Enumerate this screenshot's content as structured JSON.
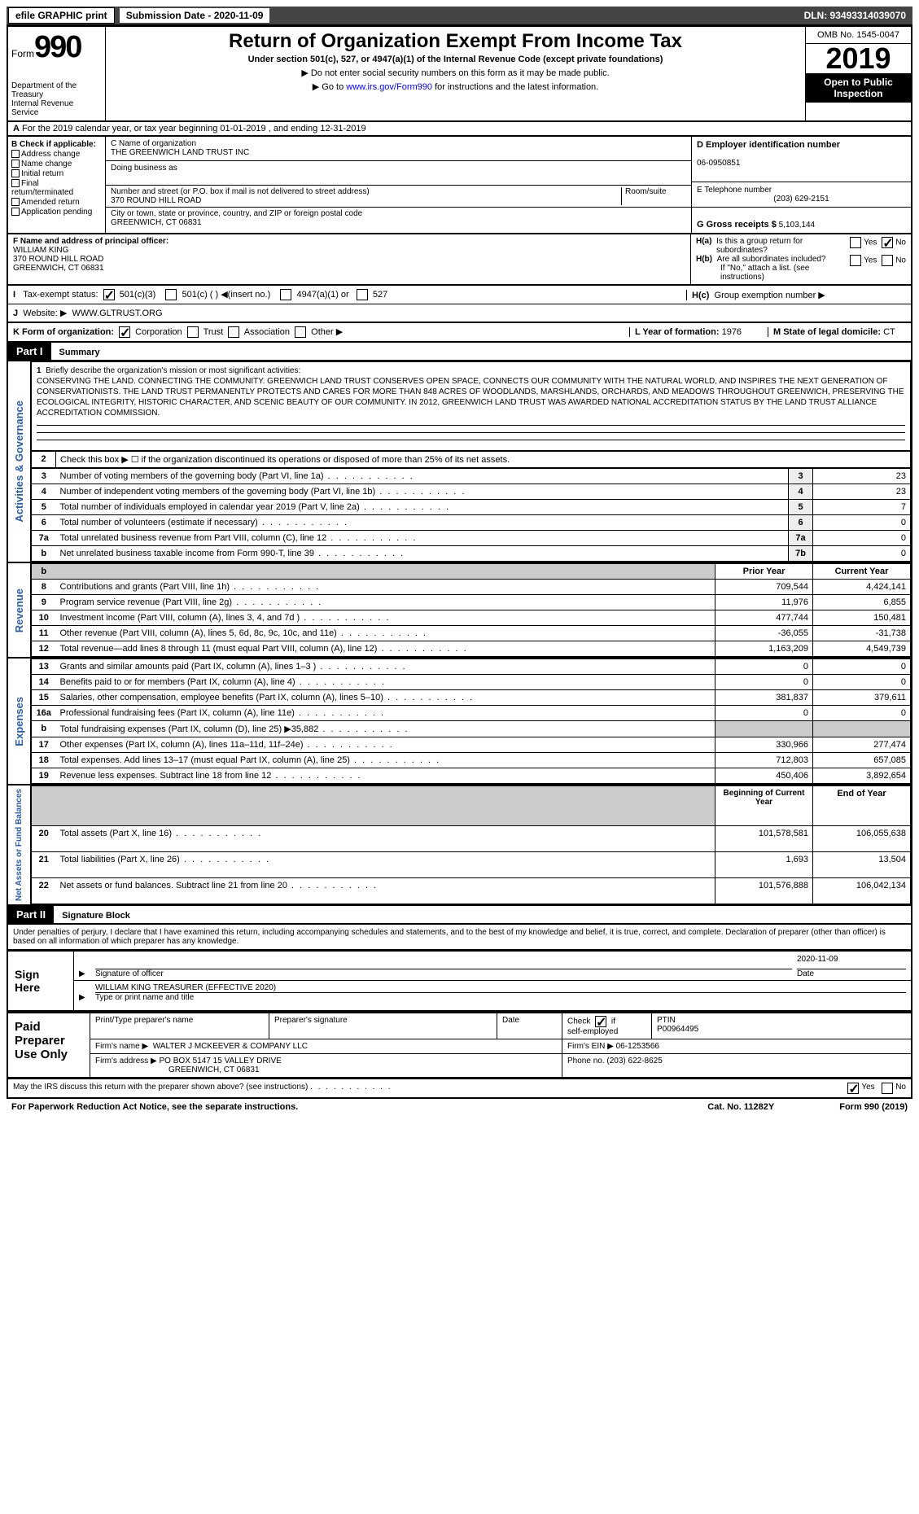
{
  "topbar": {
    "efile": "efile GRAPHIC print",
    "submission": "Submission Date - 2020-11-09",
    "dln": "DLN: 93493314039070"
  },
  "header": {
    "form": "Form",
    "n990": "990",
    "dept": "Department of the Treasury\nInternal Revenue Service",
    "title": "Return of Organization Exempt From Income Tax",
    "sub": "Under section 501(c), 527, or 4947(a)(1) of the Internal Revenue Code (except private foundations)",
    "arrow1": "▶ Do not enter social security numbers on this form as it may be made public.",
    "arrow2": "▶ Go to www.irs.gov/Form990 for instructions and the latest information.",
    "link": "www.irs.gov/Form990",
    "omb": "OMB No. 1545-0047",
    "year": "2019",
    "open": "Open to Public Inspection"
  },
  "A": {
    "line": "For the 2019 calendar year, or tax year beginning 01-01-2019   , and ending 12-31-2019"
  },
  "B": {
    "hdr": "B Check if applicable:",
    "opts": [
      "Address change",
      "Name change",
      "Initial return",
      "Final return/terminated",
      "Amended return",
      "Application pending"
    ]
  },
  "C": {
    "lbl": "C Name of organization",
    "name": "THE GREENWICH LAND TRUST INC",
    "dba": "Doing business as",
    "addrlbl": "Number and street (or P.O. box if mail is not delivered to street address)",
    "room": "Room/suite",
    "addr": "370 ROUND HILL ROAD",
    "citylbl": "City or town, state or province, country, and ZIP or foreign postal code",
    "city": "GREENWICH, CT  06831"
  },
  "D": {
    "lbl": "D Employer identification number",
    "ein": "06-0950851"
  },
  "E": {
    "lbl": "E Telephone number",
    "tel": "(203) 629-2151"
  },
  "G": {
    "lbl": "G Gross receipts $",
    "val": "5,103,144"
  },
  "F": {
    "lbl": "F  Name and address of principal officer:",
    "name": "WILLIAM KING",
    "addr": "370 ROUND HILL ROAD",
    "city": "GREENWICH, CT  06831"
  },
  "H": {
    "a": "Is this a group return for",
    "a2": "subordinates?",
    "b": "Are all subordinates included?",
    "bnote": "If \"No,\" attach a list. (see instructions)",
    "c": "Group exemption number ▶",
    "yes": "Yes",
    "no": "No"
  },
  "I": {
    "lbl": "Tax-exempt status:",
    "o1": "501(c)(3)",
    "o2": "501(c) (  ) ◀(insert no.)",
    "o3": "4947(a)(1) or",
    "o4": "527"
  },
  "J": {
    "lbl": "Website: ▶",
    "val": "WWW.GLTRUST.ORG"
  },
  "K": {
    "lbl": "K Form of organization:",
    "o1": "Corporation",
    "o2": "Trust",
    "o3": "Association",
    "o4": "Other ▶"
  },
  "L": {
    "lbl": "L Year of formation:",
    "val": "1976"
  },
  "M": {
    "lbl": "M State of legal domicile:",
    "val": "CT"
  },
  "part1": {
    "hdr": "Part I",
    "title": "Summary",
    "vlabels": [
      "Activities & Governance",
      "Revenue",
      "Expenses",
      "Net Assets or Fund Balances"
    ],
    "line1": "Briefly describe the organization's mission or most significant activities:",
    "mission": "CONSERVING THE LAND. CONNECTING THE COMMUNITY. GREENWICH LAND TRUST CONSERVES OPEN SPACE, CONNECTS OUR COMMUNITY WITH THE NATURAL WORLD, AND INSPIRES THE NEXT GENERATION OF CONSERVATIONISTS. THE LAND TRUST PERMANENTLY PROTECTS AND CARES FOR MORE THAN 848 ACRES OF WOODLANDS, MARSHLANDS, ORCHARDS, AND MEADOWS THROUGHOUT GREENWICH, PRESERVING THE ECOLOGICAL INTEGRITY, HISTORIC CHARACTER, AND SCENIC BEAUTY OF OUR COMMUNITY. IN 2012, GREENWICH LAND TRUST WAS AWARDED NATIONAL ACCREDITATION STATUS BY THE LAND TRUST ALLIANCE ACCREDITATION COMMISSION.",
    "line2": "Check this box ▶ ☐  if the organization discontinued its operations or disposed of more than 25% of its net assets.",
    "rows_gov": [
      [
        "3",
        "Number of voting members of the governing body (Part VI, line 1a)",
        "3",
        "23"
      ],
      [
        "4",
        "Number of independent voting members of the governing body (Part VI, line 1b)",
        "4",
        "23"
      ],
      [
        "5",
        "Total number of individuals employed in calendar year 2019 (Part V, line 2a)",
        "5",
        "7"
      ],
      [
        "6",
        "Total number of volunteers (estimate if necessary)",
        "6",
        "0"
      ],
      [
        "7a",
        "Total unrelated business revenue from Part VIII, column (C), line 12",
        "7a",
        "0"
      ],
      [
        "b",
        "Net unrelated business taxable income from Form 990-T, line 39",
        "7b",
        "0"
      ]
    ],
    "col_py": "Prior Year",
    "col_cy": "Current Year",
    "rows_rev": [
      [
        "8",
        "Contributions and grants (Part VIII, line 1h)",
        "709,544",
        "4,424,141"
      ],
      [
        "9",
        "Program service revenue (Part VIII, line 2g)",
        "11,976",
        "6,855"
      ],
      [
        "10",
        "Investment income (Part VIII, column (A), lines 3, 4, and 7d )",
        "477,744",
        "150,481"
      ],
      [
        "11",
        "Other revenue (Part VIII, column (A), lines 5, 6d, 8c, 9c, 10c, and 11e)",
        "-36,055",
        "-31,738"
      ],
      [
        "12",
        "Total revenue—add lines 8 through 11 (must equal Part VIII, column (A), line 12)",
        "1,163,209",
        "4,549,739"
      ]
    ],
    "rows_exp": [
      [
        "13",
        "Grants and similar amounts paid (Part IX, column (A), lines 1–3 )",
        "0",
        "0"
      ],
      [
        "14",
        "Benefits paid to or for members (Part IX, column (A), line 4)",
        "0",
        "0"
      ],
      [
        "15",
        "Salaries, other compensation, employee benefits (Part IX, column (A), lines 5–10)",
        "381,837",
        "379,611"
      ],
      [
        "16a",
        "Professional fundraising fees (Part IX, column (A), line 11e)",
        "0",
        "0"
      ],
      [
        "b",
        "Total fundraising expenses (Part IX, column (D), line 25) ▶35,882",
        "",
        ""
      ],
      [
        "17",
        "Other expenses (Part IX, column (A), lines 11a–11d, 11f–24e)",
        "330,966",
        "277,474"
      ],
      [
        "18",
        "Total expenses. Add lines 13–17 (must equal Part IX, column (A), line 25)",
        "712,803",
        "657,085"
      ],
      [
        "19",
        "Revenue less expenses. Subtract line 18 from line 12",
        "450,406",
        "3,892,654"
      ]
    ],
    "col_bcy": "Beginning of Current Year",
    "col_eoy": "End of Year",
    "rows_net": [
      [
        "20",
        "Total assets (Part X, line 16)",
        "101,578,581",
        "106,055,638"
      ],
      [
        "21",
        "Total liabilities (Part X, line 26)",
        "1,693",
        "13,504"
      ],
      [
        "22",
        "Net assets or fund balances. Subtract line 21 from line 20",
        "101,576,888",
        "106,042,134"
      ]
    ]
  },
  "part2": {
    "hdr": "Part II",
    "title": "Signature Block",
    "perjury": "Under penalties of perjury, I declare that I have examined this return, including accompanying schedules and statements, and to the best of my knowledge and belief, it is true, correct, and complete. Declaration of preparer (other than officer) is based on all information of which preparer has any knowledge.",
    "sign": "Sign Here",
    "sigoff": "Signature of officer",
    "date": "Date",
    "sigdate": "2020-11-09",
    "printed": "WILLIAM KING  TREASURER (EFFECTIVE 2020)",
    "printedlbl": "Type or print name and title",
    "paid": "Paid Preparer Use Only",
    "h1": "Print/Type preparer's name",
    "h2": "Preparer's signature",
    "h3": "Date",
    "h4": "Check ☑ if self-employed",
    "h5": "PTIN",
    "ptin": "P00964495",
    "firm": "Firm's name      ▶",
    "firmname": "WALTER J MCKEEVER & COMPANY LLC",
    "fein": "Firm's EIN ▶",
    "feinval": "06-1253566",
    "faddr": "Firm's address ▶",
    "faddrval": "PO BOX 5147 15 VALLEY DRIVE",
    "faddrcity": "GREENWICH, CT  06831",
    "phone": "Phone no.",
    "phoneval": "(203) 622-8625",
    "discuss": "May the IRS discuss this return with the preparer shown above? (see instructions)"
  },
  "footer": {
    "paperwork": "For Paperwork Reduction Act Notice, see the separate instructions.",
    "cat": "Cat. No. 11282Y",
    "form": "Form 990 (2019)"
  }
}
